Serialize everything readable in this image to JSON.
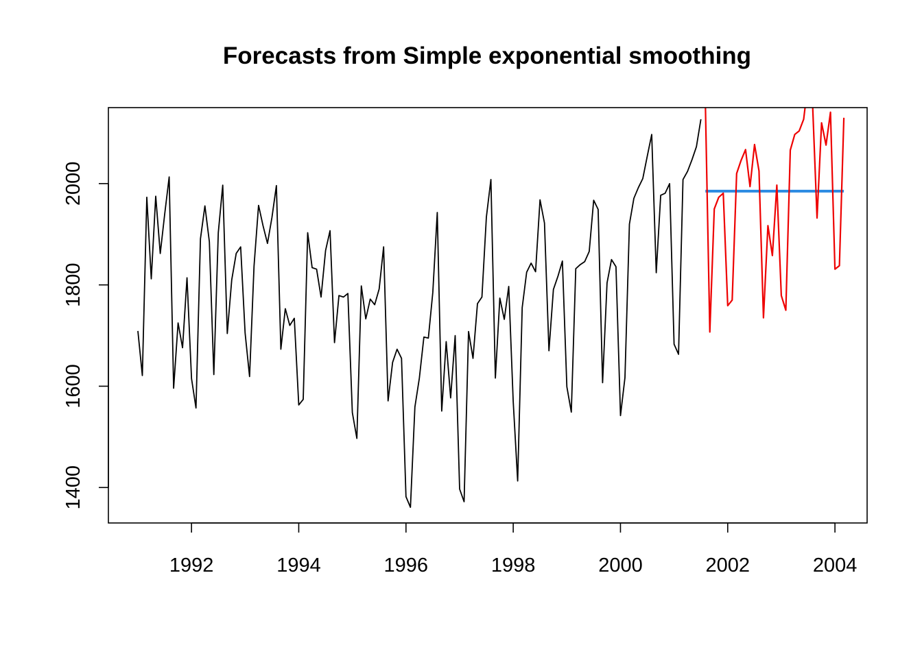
{
  "chart_data": {
    "type": "line",
    "title": "Forecasts from Simple exponential smoothing",
    "xlabel": "",
    "ylabel": "",
    "xlim": [
      1990.45,
      2004.6
    ],
    "ylim": [
      1330,
      2150
    ],
    "x_ticks": [
      1992,
      1994,
      1996,
      1998,
      2000,
      2002,
      2004
    ],
    "x_tick_labels": [
      "1992",
      "1994",
      "1996",
      "1998",
      "2000",
      "2002",
      "2004"
    ],
    "y_ticks": [
      1400,
      1600,
      1800,
      2000
    ],
    "y_tick_labels": [
      "1400",
      "1600",
      "1800",
      "2000"
    ],
    "grid": false,
    "series": [
      {
        "role": "observed",
        "color": "#000000",
        "x_start": 1991.0,
        "x_step": 0.08333333,
        "values": [
          1709,
          1621,
          1973,
          1812,
          1975,
          1862,
          1940,
          2013,
          1596,
          1725,
          1676,
          1814,
          1615,
          1557,
          1891,
          1956,
          1885,
          1623,
          1903,
          1997,
          1704,
          1810,
          1862,
          1875,
          1705,
          1619,
          1837,
          1957,
          1917,
          1882,
          1933,
          1996,
          1673,
          1753,
          1720,
          1734,
          1563,
          1574,
          1903,
          1834,
          1831,
          1776,
          1868,
          1907,
          1686,
          1779,
          1776,
          1783,
          1548,
          1497,
          1798,
          1733,
          1772,
          1761,
          1792,
          1875,
          1571,
          1647,
          1673,
          1655,
          1382,
          1361,
          1559,
          1616,
          1697,
          1695,
          1785,
          1943,
          1551,
          1688,
          1577,
          1700,
          1397,
          1372,
          1708,
          1655,
          1763,
          1776,
          1934,
          2008,
          1616,
          1774,
          1732,
          1797,
          1570,
          1413,
          1755,
          1825,
          1843,
          1826,
          1968,
          1922,
          1670,
          1791,
          1817,
          1847,
          1599,
          1549,
          1832,
          1840,
          1846,
          1866,
          1967,
          1949,
          1607,
          1804,
          1850,
          1836,
          1542,
          1617,
          1920,
          1971,
          1992,
          2010,
          2054,
          2097,
          1824,
          1977,
          1981,
          2000,
          1683,
          1663,
          2008,
          2024,
          2047,
          2073,
          2127
        ]
      },
      {
        "role": "forecast",
        "color": "#2b8ae2",
        "x": [
          2001.5833,
          2004.1667
        ],
        "values": [
          1985,
          1985
        ]
      },
      {
        "role": "interval",
        "color": "#ee0000",
        "x_start": 2001.5833,
        "x_step": 0.08333333,
        "values": [
          2160,
          1707,
          1950,
          1973,
          1981,
          1759,
          1770,
          2020,
          2046,
          2067,
          1994,
          2077,
          2025,
          1735,
          1917,
          1858,
          1997,
          1779,
          1750,
          2066,
          2097,
          2104,
          2127,
          2200,
          2157,
          1932,
          2120,
          2076,
          2141,
          1831,
          1838,
          2130
        ]
      }
    ]
  }
}
